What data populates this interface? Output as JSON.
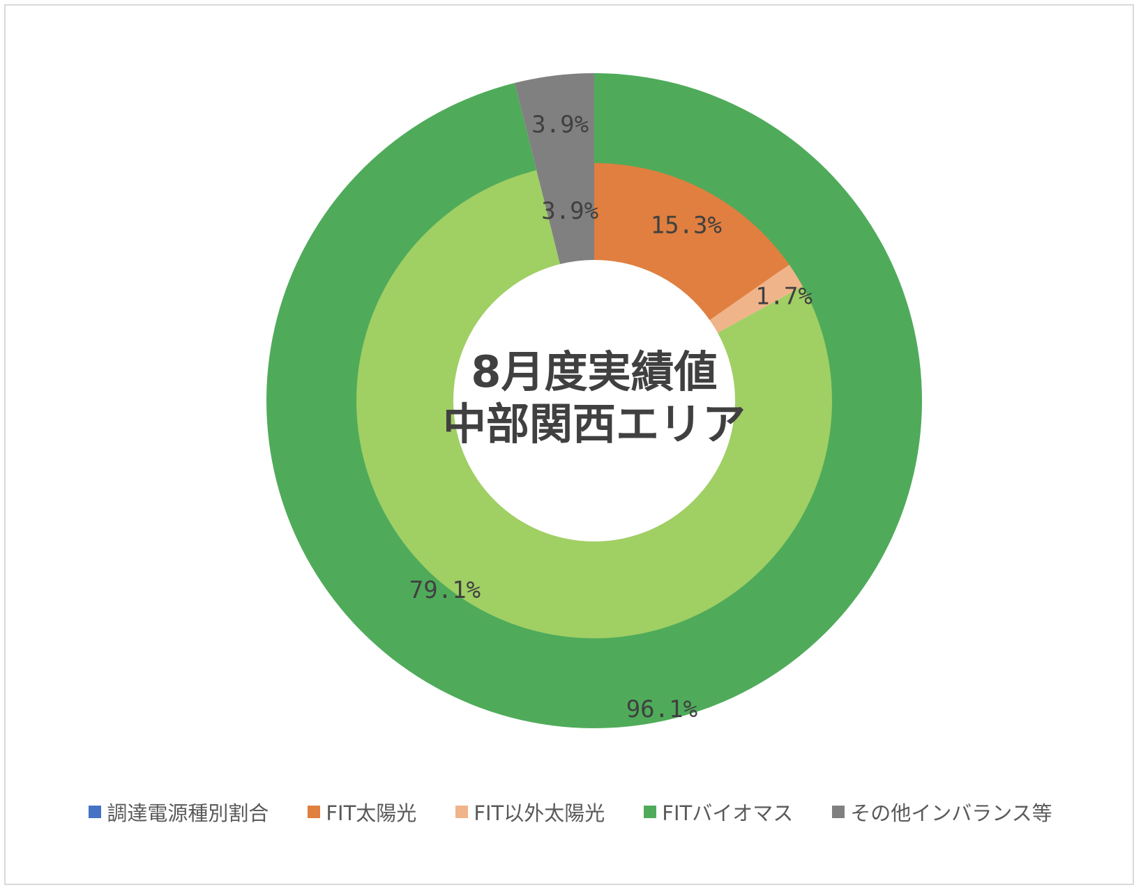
{
  "chart_data": {
    "type": "pie",
    "center_title_lines": [
      "8月度実績値",
      "中部関西エリア"
    ],
    "legend": [
      {
        "label": "調達電源種別割合",
        "color": "#4472c4"
      },
      {
        "label": "FIT太陽光",
        "color": "#e07f3f"
      },
      {
        "label": "FIT以外太陽光",
        "color": "#f0b48a"
      },
      {
        "label": "FITバイオマス",
        "color": "#4fab5a"
      },
      {
        "label": "その他インバランス等",
        "color": "#808080"
      }
    ],
    "rings": [
      {
        "ring": "outer",
        "slices": [
          {
            "category": "FITバイオマス",
            "value": 96.1,
            "label": "96.1%",
            "color": "#4fab5a"
          },
          {
            "category": "その他インバランス等",
            "value": 3.9,
            "label": "3.9%",
            "color": "#808080"
          }
        ]
      },
      {
        "ring": "inner",
        "slices": [
          {
            "category": "FIT太陽光",
            "value": 15.3,
            "label": "15.3%",
            "color": "#e07f3f"
          },
          {
            "category": "FIT以外太陽光",
            "value": 1.7,
            "label": "1.7%",
            "color": "#f0b48a"
          },
          {
            "category": "FITバイオマス",
            "value": 79.1,
            "label": "79.1%",
            "color": "#a0cf64"
          },
          {
            "category": "その他インバランス等",
            "value": 3.9,
            "label": "3.9%",
            "color": "#808080"
          }
        ]
      }
    ]
  }
}
